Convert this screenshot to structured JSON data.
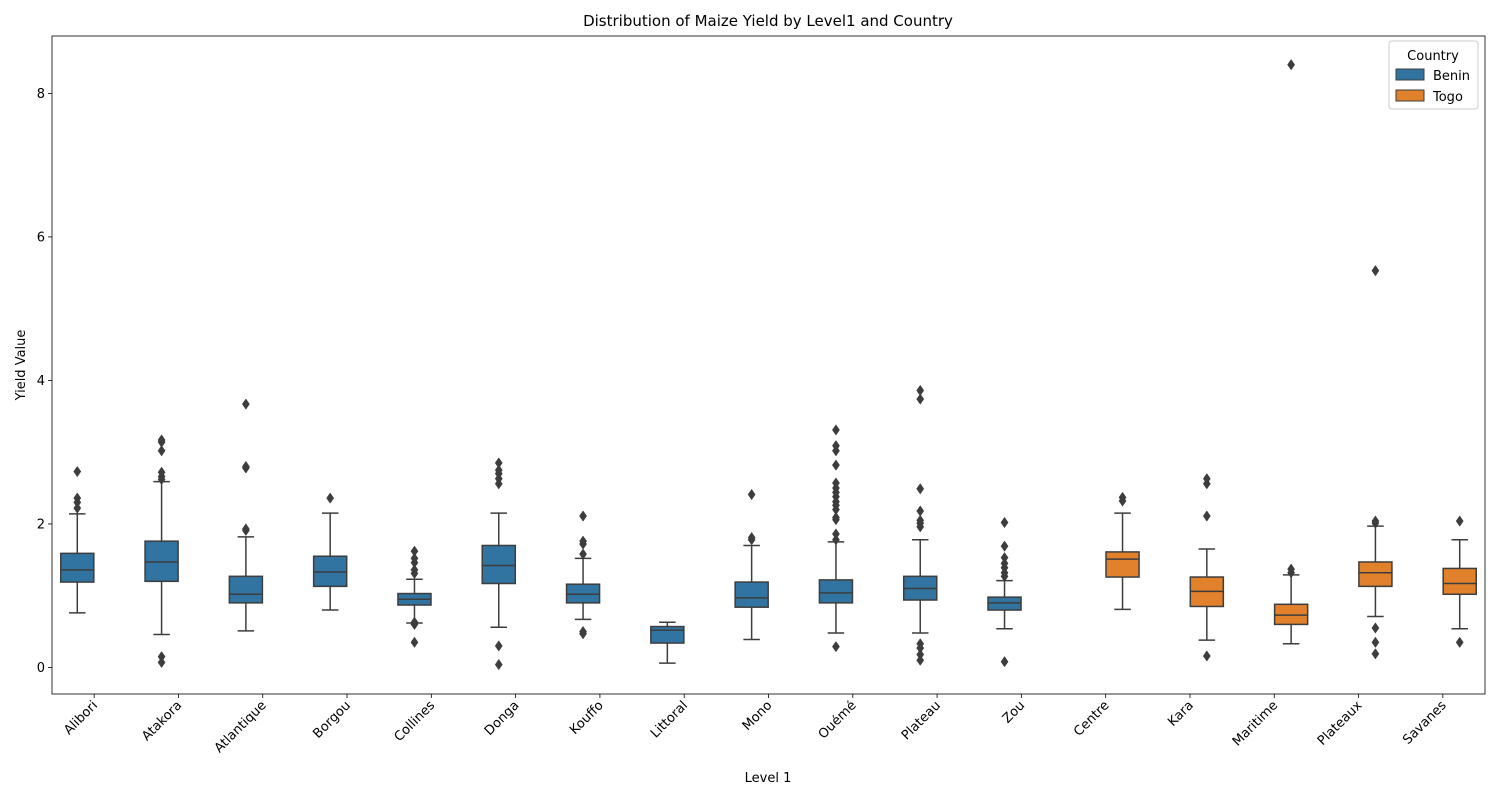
{
  "chart_data": {
    "type": "box",
    "title": "Distribution of Maize Yield by Level1 and Country",
    "xlabel": "Level 1",
    "ylabel": "Yield Value",
    "ylim": [
      -0.37,
      8.8
    ],
    "yticks": [
      0,
      2,
      4,
      6,
      8
    ],
    "grid": false,
    "legend": {
      "title": "Country",
      "placement": "top-right",
      "entries": [
        {
          "name": "Benin",
          "color": "#3274a1"
        },
        {
          "name": "Togo",
          "color": "#e1812c"
        }
      ]
    },
    "categories": [
      "Alibori",
      "Atakora",
      "Atlantique",
      "Borgou",
      "Collines",
      "Donga",
      "Kouffo",
      "Littoral",
      "Mono",
      "Ouémé",
      "Plateau",
      "Zou",
      "Centre",
      "Kara",
      "Maritime",
      "Plateaux",
      "Savanes"
    ],
    "series": [
      {
        "name": "Benin",
        "color": "#3274a1",
        "boxes": [
          {
            "category": "Alibori",
            "whisker_low": 0.76,
            "q1": 1.19,
            "median": 1.36,
            "q3": 1.59,
            "whisker_high": 2.14,
            "outliers": [
              2.22,
              2.3,
              2.36,
              2.73
            ]
          },
          {
            "category": "Atakora",
            "whisker_low": 0.46,
            "q1": 1.2,
            "median": 1.47,
            "q3": 1.76,
            "whisker_high": 2.59,
            "outliers": [
              0.07,
              0.15,
              2.62,
              2.66,
              2.72,
              3.02,
              3.14,
              3.17
            ]
          },
          {
            "category": "Atlantique",
            "whisker_low": 0.51,
            "q1": 0.9,
            "median": 1.02,
            "q3": 1.27,
            "whisker_high": 1.82,
            "outliers": [
              1.91,
              1.93,
              2.78,
              2.8,
              3.67
            ]
          },
          {
            "category": "Borgou",
            "whisker_low": 0.8,
            "q1": 1.13,
            "median": 1.33,
            "q3": 1.55,
            "whisker_high": 2.15,
            "outliers": [
              2.36
            ]
          },
          {
            "category": "Collines",
            "whisker_low": 0.62,
            "q1": 0.87,
            "median": 0.95,
            "q3": 1.03,
            "whisker_high": 1.23,
            "outliers": [
              0.35,
              0.6,
              0.63,
              1.31,
              1.36,
              1.46,
              1.52,
              1.62
            ]
          },
          {
            "category": "Donga",
            "whisker_low": 0.56,
            "q1": 1.17,
            "median": 1.42,
            "q3": 1.7,
            "whisker_high": 2.15,
            "outliers": [
              0.04,
              0.3,
              2.56,
              2.63,
              2.7,
              2.75,
              2.85
            ]
          },
          {
            "category": "Kouffo",
            "whisker_low": 0.67,
            "q1": 0.9,
            "median": 1.02,
            "q3": 1.16,
            "whisker_high": 1.52,
            "outliers": [
              0.47,
              0.5,
              1.58,
              1.72,
              1.76,
              2.11
            ]
          },
          {
            "category": "Littoral",
            "whisker_low": 0.06,
            "q1": 0.34,
            "median": 0.52,
            "q3": 0.57,
            "whisker_high": 0.63,
            "outliers": []
          },
          {
            "category": "Mono",
            "whisker_low": 0.39,
            "q1": 0.84,
            "median": 0.97,
            "q3": 1.19,
            "whisker_high": 1.7,
            "outliers": [
              1.78,
              1.81,
              2.41
            ]
          },
          {
            "category": "Ouémé",
            "whisker_low": 0.48,
            "q1": 0.9,
            "median": 1.04,
            "q3": 1.22,
            "whisker_high": 1.75,
            "outliers": [
              0.29,
              1.78,
              1.86,
              2.06,
              2.09,
              2.2,
              2.26,
              2.31,
              2.38,
              2.44,
              2.5,
              2.57,
              2.82,
              3.02,
              3.09,
              3.31
            ]
          },
          {
            "category": "Plateau",
            "whisker_low": 0.48,
            "q1": 0.94,
            "median": 1.1,
            "q3": 1.27,
            "whisker_high": 1.78,
            "outliers": [
              0.1,
              0.18,
              0.27,
              0.33,
              1.96,
              2.01,
              2.05,
              2.18,
              2.49,
              3.74,
              3.86
            ]
          },
          {
            "category": "Zou",
            "whisker_low": 0.54,
            "q1": 0.8,
            "median": 0.9,
            "q3": 0.98,
            "whisker_high": 1.21,
            "outliers": [
              0.08,
              1.27,
              1.32,
              1.39,
              1.45,
              1.53,
              1.69,
              2.02
            ]
          }
        ]
      },
      {
        "name": "Togo",
        "color": "#e1812c",
        "boxes": [
          {
            "category": "Centre",
            "whisker_low": 0.81,
            "q1": 1.26,
            "median": 1.51,
            "q3": 1.61,
            "whisker_high": 2.15,
            "outliers": [
              2.32,
              2.37
            ]
          },
          {
            "category": "Kara",
            "whisker_low": 0.38,
            "q1": 0.85,
            "median": 1.06,
            "q3": 1.26,
            "whisker_high": 1.65,
            "outliers": [
              0.16,
              2.11,
              2.56,
              2.63
            ]
          },
          {
            "category": "Maritime",
            "whisker_low": 0.33,
            "q1": 0.6,
            "median": 0.73,
            "q3": 0.88,
            "whisker_high": 1.29,
            "outliers": [
              1.32,
              1.37,
              8.4
            ]
          },
          {
            "category": "Plateaux",
            "whisker_low": 0.71,
            "q1": 1.13,
            "median": 1.32,
            "q3": 1.47,
            "whisker_high": 1.97,
            "outliers": [
              0.19,
              0.35,
              0.55,
              2.01,
              2.04,
              5.53
            ]
          },
          {
            "category": "Savanes",
            "whisker_low": 0.54,
            "q1": 1.02,
            "median": 1.17,
            "q3": 1.38,
            "whisker_high": 1.78,
            "outliers": [
              0.35,
              2.04
            ]
          }
        ]
      }
    ]
  }
}
